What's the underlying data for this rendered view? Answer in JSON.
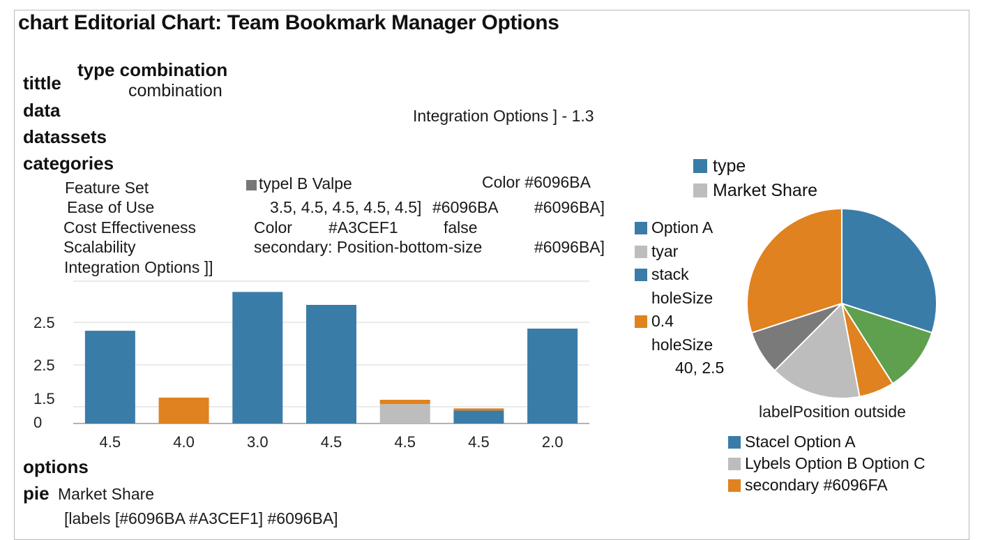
{
  "header": {
    "title": "chart Editorial Chart: Team Bookmark Manager Options"
  },
  "config": {
    "title_key": "tittle",
    "type_line": "type combination",
    "type_value": "combination",
    "data_key": "data",
    "datasets_key": "datassets",
    "categories_key": "categories",
    "integration_note": "Integration Options ] - 1.3",
    "categories": [
      "Feature Set",
      "Ease of Use",
      "Cost Effectiveness",
      "Scalability",
      "Integration Options ]]"
    ],
    "dataset_line_1": "typel B  Valpe",
    "dataset_color_1": "Color #6096BA",
    "dataset_line_2": "3.5, 4.5, 4.5, 4.5, 4.5]",
    "dataset_line_2b": "#6096BA",
    "dataset_line_2c": "#6096BA]",
    "dataset_line_3a": "Color",
    "dataset_line_3b": "#A3CEF1",
    "dataset_line_3c": "false",
    "dataset_line_4": "secondary: Position-bottom-size",
    "dataset_line_4b": "#6096BA]",
    "options_key": "options",
    "pie_key": "pie",
    "pie_label": "Market Share",
    "labels_line": "[labels  [#6096BA   #A3CEF1]   #6096BA]"
  },
  "legend_top": [
    {
      "label": "type",
      "color": "#3a7ca8"
    },
    {
      "label": "Market Share",
      "color": "#bdbdbd"
    }
  ],
  "legend_mid": [
    {
      "label": "Option A",
      "color": "#3a7ca8"
    },
    {
      "label": "tyar",
      "color": "#bdbdbd"
    },
    {
      "label": "stack",
      "color": "#3a7ca8"
    },
    {
      "label": "holeSize",
      "color": ""
    },
    {
      "label": "0.4",
      "color": "#e0821f"
    },
    {
      "label": "holeSize",
      "color": ""
    },
    {
      "label": "40, 2.5",
      "color": ""
    }
  ],
  "pie_caption": "labelPosition outside",
  "legend_bottom": [
    {
      "label": "Stacel  Option A",
      "color": "#3a7ca8"
    },
    {
      "label": "Lybels  Option B   Option C",
      "color": "#bdbdbd"
    },
    {
      "label": "secondary #6096FA",
      "color": "#e0821f"
    }
  ],
  "colors": {
    "blue": "#3a7ca8",
    "orange": "#e0821f",
    "gray": "#bdbdbd",
    "green": "#5fa04e",
    "dark_gray": "#7a7a7a"
  },
  "chart_data": [
    {
      "type": "bar",
      "categories": [
        "4.5",
        "4.0",
        "3.0",
        "4.5",
        "4.5",
        "4.5",
        "2.0"
      ],
      "y_tick_labels": [
        "2.5",
        "2.5",
        "1.5",
        "0"
      ],
      "series": [
        {
          "color": "#3a7ca8",
          "values": [
            2.15,
            0,
            3.05,
            2.75,
            0,
            0.3,
            2.2
          ]
        },
        {
          "color": "#bdbdbd",
          "values": [
            0,
            0,
            0,
            0,
            0.45,
            0,
            0
          ]
        },
        {
          "color": "#e0821f",
          "values": [
            0,
            0.6,
            0,
            0,
            0.1,
            0.05,
            0
          ]
        }
      ],
      "ylim": [
        0,
        3.3
      ],
      "grid": true
    },
    {
      "type": "pie",
      "slices": [
        {
          "value": 30,
          "color": "#3a7ca8"
        },
        {
          "value": 11,
          "color": "#5fa04e"
        },
        {
          "value": 6,
          "color": "#e0821f"
        },
        {
          "value": 15.5,
          "color": "#bdbdbd"
        },
        {
          "value": 7.5,
          "color": "#7a7a7a"
        },
        {
          "value": 30,
          "color": "#e0821f"
        }
      ]
    }
  ]
}
